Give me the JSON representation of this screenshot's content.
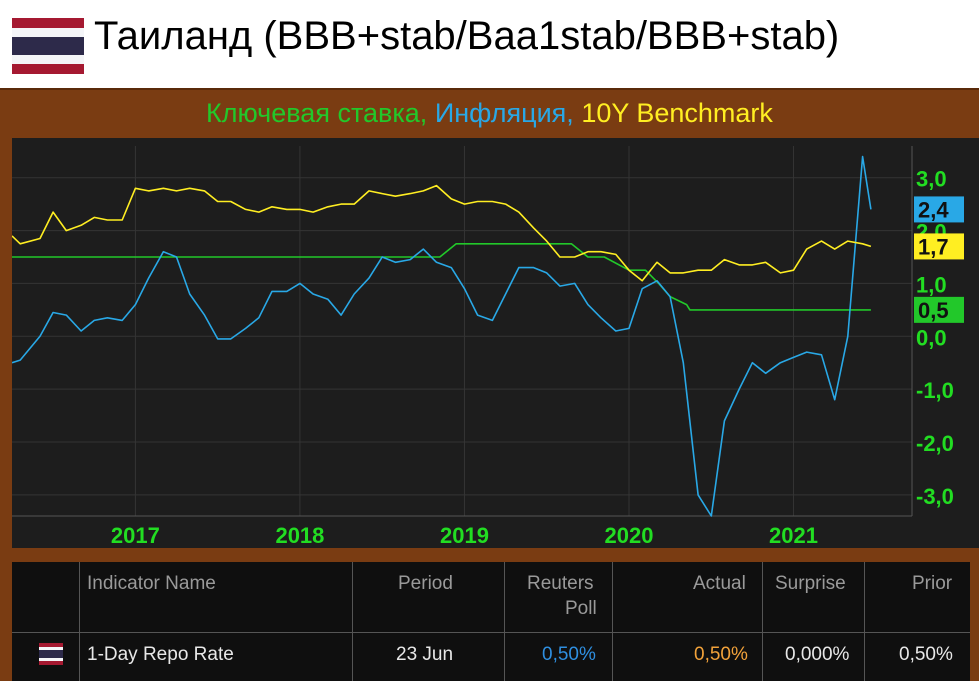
{
  "header": {
    "title": "Таиланд (BBB+stab/Baa1stab/BBB+stab)",
    "flag_colors": [
      "#a51931",
      "#f4f5f8",
      "#2d2a4a",
      "#f4f5f8",
      "#a51931"
    ]
  },
  "subtitle": {
    "part1": "Ключевая ставка,",
    "part2": "Инфляция,",
    "part3": "10Y Benchmark",
    "color1": "#22c82a",
    "color2": "#29a8e6",
    "color3": "#ffee22"
  },
  "chart_data": {
    "type": "line",
    "xlim": [
      2016.25,
      2021.72
    ],
    "ylim": [
      -3.4,
      3.6
    ],
    "x_ticks": [
      2017,
      2018,
      2019,
      2020,
      2021
    ],
    "x_tick_labels": [
      "2017",
      "2018",
      "2019",
      "2020",
      "2021"
    ],
    "y_ticks": [
      3.0,
      2.0,
      1.0,
      0.0,
      -1.0,
      -2.0,
      -3.0
    ],
    "y_tick_labels": [
      "3,0",
      "2,0",
      "1,0",
      "0,0",
      "-1,0",
      "-2,0",
      "-3,0"
    ],
    "series": [
      {
        "color": "#22c82a",
        "last_label": "0,5",
        "last_value": 0.5,
        "x": [
          2016.25,
          2018.85,
          2018.95,
          2019.65,
          2019.75,
          2019.85,
          2020.0,
          2020.1,
          2020.18,
          2020.25,
          2020.35,
          2020.37,
          2021.47
        ],
        "y": [
          1.5,
          1.5,
          1.75,
          1.75,
          1.5,
          1.5,
          1.25,
          1.25,
          1.0,
          0.75,
          0.6,
          0.5,
          0.5
        ]
      },
      {
        "color": "#29a8e6",
        "last_label": "2,4",
        "last_value": 2.4,
        "x": [
          2016.25,
          2016.3,
          2016.42,
          2016.5,
          2016.58,
          2016.67,
          2016.75,
          2016.83,
          2016.92,
          2017.0,
          2017.08,
          2017.17,
          2017.25,
          2017.33,
          2017.42,
          2017.5,
          2017.58,
          2017.67,
          2017.75,
          2017.83,
          2017.92,
          2018.0,
          2018.08,
          2018.17,
          2018.25,
          2018.33,
          2018.42,
          2018.5,
          2018.58,
          2018.67,
          2018.75,
          2018.83,
          2018.92,
          2019.0,
          2019.08,
          2019.17,
          2019.25,
          2019.33,
          2019.42,
          2019.5,
          2019.58,
          2019.67,
          2019.75,
          2019.83,
          2019.92,
          2020.0,
          2020.08,
          2020.17,
          2020.25,
          2020.33,
          2020.42,
          2020.5,
          2020.58,
          2020.67,
          2020.75,
          2020.83,
          2020.92,
          2021.0,
          2021.08,
          2021.17,
          2021.25,
          2021.33,
          2021.42
        ],
        "y": [
          -0.5,
          -0.45,
          0.0,
          0.45,
          0.4,
          0.1,
          0.3,
          0.35,
          0.3,
          0.6,
          1.1,
          1.6,
          1.5,
          0.8,
          0.4,
          -0.05,
          -0.05,
          0.15,
          0.35,
          0.85,
          0.85,
          1.0,
          0.8,
          0.7,
          0.4,
          0.8,
          1.1,
          1.5,
          1.4,
          1.45,
          1.65,
          1.4,
          1.3,
          0.9,
          0.4,
          0.3,
          0.8,
          1.3,
          1.3,
          1.2,
          0.95,
          1.0,
          0.6,
          0.35,
          0.1,
          0.15,
          0.9,
          1.05,
          0.75,
          -0.5,
          -3.0,
          -3.4,
          -1.6,
          -1.0,
          -0.5,
          -0.7,
          -0.5,
          -0.4,
          -0.3,
          -0.35,
          -1.2,
          0.0,
          3.4
        ],
        "x_tail": [
          2021.47
        ],
        "y_tail": [
          2.4
        ]
      },
      {
        "color": "#ffee22",
        "last_label": "1,7",
        "last_value": 1.7,
        "x": [
          2016.25,
          2016.3,
          2016.42,
          2016.5,
          2016.58,
          2016.67,
          2016.75,
          2016.83,
          2016.92,
          2017.0,
          2017.08,
          2017.17,
          2017.25,
          2017.33,
          2017.42,
          2017.5,
          2017.58,
          2017.67,
          2017.75,
          2017.83,
          2017.92,
          2018.0,
          2018.08,
          2018.17,
          2018.25,
          2018.33,
          2018.42,
          2018.5,
          2018.58,
          2018.67,
          2018.75,
          2018.83,
          2018.92,
          2019.0,
          2019.08,
          2019.17,
          2019.25,
          2019.33,
          2019.42,
          2019.5,
          2019.58,
          2019.67,
          2019.75,
          2019.83,
          2019.92,
          2020.0,
          2020.08,
          2020.17,
          2020.25,
          2020.33,
          2020.42,
          2020.5,
          2020.58,
          2020.67,
          2020.75,
          2020.83,
          2020.92,
          2021.0,
          2021.08,
          2021.17,
          2021.25,
          2021.33,
          2021.42,
          2021.47
        ],
        "y": [
          1.9,
          1.75,
          1.85,
          2.35,
          2.0,
          2.1,
          2.25,
          2.2,
          2.2,
          2.8,
          2.75,
          2.8,
          2.75,
          2.8,
          2.75,
          2.55,
          2.55,
          2.4,
          2.35,
          2.45,
          2.4,
          2.4,
          2.35,
          2.45,
          2.5,
          2.5,
          2.75,
          2.7,
          2.65,
          2.7,
          2.75,
          2.85,
          2.6,
          2.5,
          2.55,
          2.55,
          2.5,
          2.35,
          2.05,
          1.8,
          1.5,
          1.5,
          1.6,
          1.6,
          1.55,
          1.25,
          1.05,
          1.4,
          1.2,
          1.2,
          1.25,
          1.25,
          1.45,
          1.35,
          1.35,
          1.4,
          1.2,
          1.25,
          1.65,
          1.8,
          1.65,
          1.8,
          1.75,
          1.7
        ]
      }
    ]
  },
  "table": {
    "headers": {
      "indicator": "Indicator Name",
      "period": "Period",
      "poll_line1": "Reuters",
      "poll_line2": "Poll",
      "actual": "Actual",
      "surprise": "Surprise",
      "prior": "Prior"
    },
    "row": {
      "indicator": "1-Day Repo Rate",
      "period": "23 Jun",
      "poll": "0,50%",
      "actual": "0,50%",
      "surprise": "0,000%",
      "prior": "0,50%"
    },
    "poll_color": "#2f8fe0",
    "actual_color": "#f2a23a"
  }
}
